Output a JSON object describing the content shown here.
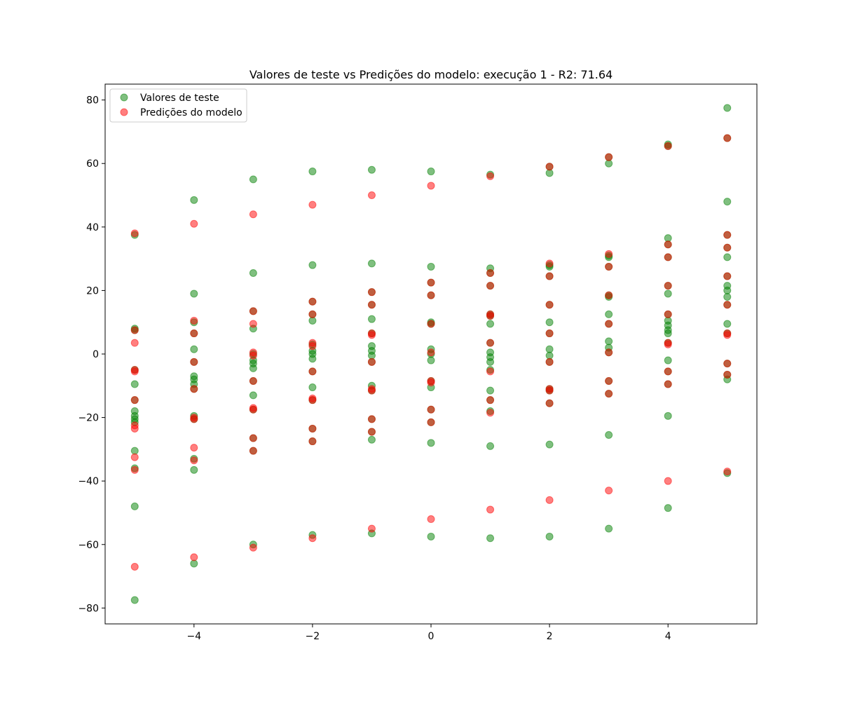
{
  "chart_data": {
    "type": "scatter",
    "title": "Valores de teste vs Predições do modelo: execução 1 - R2: 71.64",
    "xlabel": "",
    "ylabel": "",
    "xlim": [
      -5.5,
      5.5
    ],
    "ylim": [
      -85,
      85
    ],
    "xticks": [
      -4,
      -2,
      0,
      2,
      4
    ],
    "xtick_labels": [
      "−4",
      "−2",
      "0",
      "2",
      "4"
    ],
    "yticks": [
      -80,
      -60,
      -40,
      -20,
      0,
      20,
      40,
      60,
      80
    ],
    "ytick_labels": [
      "−80",
      "−60",
      "−40",
      "−20",
      "0",
      "20",
      "40",
      "60",
      "80"
    ],
    "grid": false,
    "legend_position": "top-left",
    "series": [
      {
        "name": "Valores de teste",
        "color": "#008000",
        "points": [
          [
            -5,
            37.5
          ],
          [
            -5,
            8
          ],
          [
            -5,
            7.5
          ],
          [
            -5,
            -5
          ],
          [
            -5,
            -9.5
          ],
          [
            -5,
            -14.5
          ],
          [
            -5,
            -18
          ],
          [
            -5,
            -19.5
          ],
          [
            -5,
            -20.5
          ],
          [
            -5,
            -21.5
          ],
          [
            -5,
            -30.5
          ],
          [
            -5,
            -36
          ],
          [
            -5,
            -48
          ],
          [
            -5,
            -77.5
          ],
          [
            -4,
            48.5
          ],
          [
            -4,
            19
          ],
          [
            -4,
            10
          ],
          [
            -4,
            6.5
          ],
          [
            -4,
            1.5
          ],
          [
            -4,
            -2.5
          ],
          [
            -4,
            -7
          ],
          [
            -4,
            -8
          ],
          [
            -4,
            -9.5
          ],
          [
            -4,
            -11
          ],
          [
            -4,
            -19.5
          ],
          [
            -4,
            -20.5
          ],
          [
            -4,
            -33
          ],
          [
            -4,
            -36.5
          ],
          [
            -4,
            -66
          ],
          [
            -3,
            55
          ],
          [
            -3,
            25.5
          ],
          [
            -3,
            13.5
          ],
          [
            -3,
            8
          ],
          [
            -3,
            0
          ],
          [
            -3,
            -2
          ],
          [
            -3,
            -3
          ],
          [
            -3,
            -4.5
          ],
          [
            -3,
            -8.5
          ],
          [
            -3,
            -13
          ],
          [
            -3,
            -17.5
          ],
          [
            -3,
            -26.5
          ],
          [
            -3,
            -30.5
          ],
          [
            -3,
            -60
          ],
          [
            -2,
            57.5
          ],
          [
            -2,
            28
          ],
          [
            -2,
            16.5
          ],
          [
            -2,
            12.5
          ],
          [
            -2,
            10.5
          ],
          [
            -2,
            3
          ],
          [
            -2,
            1
          ],
          [
            -2,
            0
          ],
          [
            -2,
            -1.5
          ],
          [
            -2,
            -5.5
          ],
          [
            -2,
            -10.5
          ],
          [
            -2,
            -14.5
          ],
          [
            -2,
            -23.5
          ],
          [
            -2,
            -27.5
          ],
          [
            -2,
            -57
          ],
          [
            -1,
            58
          ],
          [
            -1,
            28.5
          ],
          [
            -1,
            19.5
          ],
          [
            -1,
            15.5
          ],
          [
            -1,
            11
          ],
          [
            -1,
            6.5
          ],
          [
            -1,
            2.5
          ],
          [
            -1,
            1
          ],
          [
            -1,
            -0.5
          ],
          [
            -1,
            -2.5
          ],
          [
            -1,
            -10
          ],
          [
            -1,
            -11.5
          ],
          [
            -1,
            -20.5
          ],
          [
            -1,
            -24.5
          ],
          [
            -1,
            -27
          ],
          [
            -1,
            -56.5
          ],
          [
            0,
            57.5
          ],
          [
            0,
            27.5
          ],
          [
            0,
            22.5
          ],
          [
            0,
            18.5
          ],
          [
            0,
            10
          ],
          [
            0,
            9.5
          ],
          [
            0,
            1.5
          ],
          [
            0,
            0
          ],
          [
            0,
            -2
          ],
          [
            0,
            -8.5
          ],
          [
            0,
            -10.5
          ],
          [
            0,
            -17.5
          ],
          [
            0,
            -21.5
          ],
          [
            0,
            -28
          ],
          [
            0,
            -57.5
          ],
          [
            1,
            56.5
          ],
          [
            1,
            27
          ],
          [
            1,
            25.5
          ],
          [
            1,
            21.5
          ],
          [
            1,
            12.5
          ],
          [
            1,
            12
          ],
          [
            1,
            9.5
          ],
          [
            1,
            3.5
          ],
          [
            1,
            0.5
          ],
          [
            1,
            -1
          ],
          [
            1,
            -2.5
          ],
          [
            1,
            -5
          ],
          [
            1,
            -11.5
          ],
          [
            1,
            -14.5
          ],
          [
            1,
            -18
          ],
          [
            1,
            -29
          ],
          [
            1,
            -58
          ],
          [
            2,
            59
          ],
          [
            2,
            57
          ],
          [
            2,
            28
          ],
          [
            2,
            27.5
          ],
          [
            2,
            24.5
          ],
          [
            2,
            15.5
          ],
          [
            2,
            10
          ],
          [
            2,
            6.5
          ],
          [
            2,
            1.5
          ],
          [
            2,
            -0.5
          ],
          [
            2,
            -2.5
          ],
          [
            2,
            -11
          ],
          [
            2,
            -11.5
          ],
          [
            2,
            -15.5
          ],
          [
            2,
            -28.5
          ],
          [
            2,
            -57.5
          ],
          [
            3,
            62
          ],
          [
            3,
            60
          ],
          [
            3,
            31
          ],
          [
            3,
            30.5
          ],
          [
            3,
            27.5
          ],
          [
            3,
            18.5
          ],
          [
            3,
            18
          ],
          [
            3,
            12.5
          ],
          [
            3,
            9.5
          ],
          [
            3,
            4
          ],
          [
            3,
            2
          ],
          [
            3,
            0.5
          ],
          [
            3,
            -8.5
          ],
          [
            3,
            -12.5
          ],
          [
            3,
            -25.5
          ],
          [
            3,
            -55
          ],
          [
            4,
            66
          ],
          [
            4,
            65.5
          ],
          [
            4,
            36.5
          ],
          [
            4,
            34.5
          ],
          [
            4,
            30.5
          ],
          [
            4,
            21.5
          ],
          [
            4,
            19
          ],
          [
            4,
            12.5
          ],
          [
            4,
            10.5
          ],
          [
            4,
            9
          ],
          [
            4,
            7.5
          ],
          [
            4,
            6.5
          ],
          [
            4,
            3.5
          ],
          [
            4,
            -2
          ],
          [
            4,
            -5.5
          ],
          [
            4,
            -9.5
          ],
          [
            4,
            -19.5
          ],
          [
            4,
            -48.5
          ],
          [
            5,
            77.5
          ],
          [
            5,
            68
          ],
          [
            5,
            48
          ],
          [
            5,
            37.5
          ],
          [
            5,
            33.5
          ],
          [
            5,
            30.5
          ],
          [
            5,
            24.5
          ],
          [
            5,
            21.5
          ],
          [
            5,
            20
          ],
          [
            5,
            18
          ],
          [
            5,
            15.5
          ],
          [
            5,
            9.5
          ],
          [
            5,
            6.5
          ],
          [
            5,
            -3
          ],
          [
            5,
            -6.5
          ],
          [
            5,
            -8
          ],
          [
            5,
            -37.5
          ]
        ]
      },
      {
        "name": "Predições do modelo",
        "color": "#ff0000",
        "points": [
          [
            -5,
            38
          ],
          [
            -5,
            7.5
          ],
          [
            -5,
            3.5
          ],
          [
            -5,
            -5
          ],
          [
            -5,
            -5.5
          ],
          [
            -5,
            -14.5
          ],
          [
            -5,
            -22.5
          ],
          [
            -5,
            -23.5
          ],
          [
            -5,
            -32.5
          ],
          [
            -5,
            -36.5
          ],
          [
            -5,
            -67
          ],
          [
            -4,
            41
          ],
          [
            -4,
            10.5
          ],
          [
            -4,
            6.5
          ],
          [
            -4,
            -2.5
          ],
          [
            -4,
            -11
          ],
          [
            -4,
            -20
          ],
          [
            -4,
            -20.5
          ],
          [
            -4,
            -29.5
          ],
          [
            -4,
            -33.5
          ],
          [
            -4,
            -64
          ],
          [
            -3,
            44
          ],
          [
            -3,
            13.5
          ],
          [
            -3,
            9.5
          ],
          [
            -3,
            0.5
          ],
          [
            -3,
            -0.5
          ],
          [
            -3,
            -8.5
          ],
          [
            -3,
            -17
          ],
          [
            -3,
            -17.5
          ],
          [
            -3,
            -26.5
          ],
          [
            -3,
            -30.5
          ],
          [
            -3,
            -61
          ],
          [
            -2,
            47
          ],
          [
            -2,
            16.5
          ],
          [
            -2,
            12.5
          ],
          [
            -2,
            3.5
          ],
          [
            -2,
            2.5
          ],
          [
            -2,
            -5.5
          ],
          [
            -2,
            -14
          ],
          [
            -2,
            -14.5
          ],
          [
            -2,
            -23.5
          ],
          [
            -2,
            -27.5
          ],
          [
            -2,
            -58
          ],
          [
            -1,
            50
          ],
          [
            -1,
            19.5
          ],
          [
            -1,
            15.5
          ],
          [
            -1,
            6.5
          ],
          [
            -1,
            6
          ],
          [
            -1,
            -2.5
          ],
          [
            -1,
            -11
          ],
          [
            -1,
            -11.5
          ],
          [
            -1,
            -20.5
          ],
          [
            -1,
            -24.5
          ],
          [
            -1,
            -55
          ],
          [
            0,
            53
          ],
          [
            0,
            22.5
          ],
          [
            0,
            18.5
          ],
          [
            0,
            9.5
          ],
          [
            0,
            0.5
          ],
          [
            0,
            -8.5
          ],
          [
            0,
            -9
          ],
          [
            0,
            -17.5
          ],
          [
            0,
            -21.5
          ],
          [
            0,
            -52
          ],
          [
            1,
            56
          ],
          [
            1,
            25.5
          ],
          [
            1,
            21.5
          ],
          [
            1,
            12.5
          ],
          [
            1,
            12
          ],
          [
            1,
            3.5
          ],
          [
            1,
            -5.5
          ],
          [
            1,
            -14.5
          ],
          [
            1,
            -18.5
          ],
          [
            1,
            -49
          ],
          [
            2,
            59
          ],
          [
            2,
            28.5
          ],
          [
            2,
            24.5
          ],
          [
            2,
            15.5
          ],
          [
            2,
            6.5
          ],
          [
            2,
            -2.5
          ],
          [
            2,
            -11
          ],
          [
            2,
            -11.5
          ],
          [
            2,
            -15.5
          ],
          [
            2,
            -46
          ],
          [
            3,
            62
          ],
          [
            3,
            31.5
          ],
          [
            3,
            27.5
          ],
          [
            3,
            18.5
          ],
          [
            3,
            9.5
          ],
          [
            3,
            0.5
          ],
          [
            3,
            -8.5
          ],
          [
            3,
            -12.5
          ],
          [
            3,
            -43
          ],
          [
            4,
            65.5
          ],
          [
            4,
            34.5
          ],
          [
            4,
            30.5
          ],
          [
            4,
            21.5
          ],
          [
            4,
            12.5
          ],
          [
            4,
            3.5
          ],
          [
            4,
            3
          ],
          [
            4,
            -5.5
          ],
          [
            4,
            -9.5
          ],
          [
            4,
            -40
          ],
          [
            5,
            68
          ],
          [
            5,
            37.5
          ],
          [
            5,
            33.5
          ],
          [
            5,
            24.5
          ],
          [
            5,
            15.5
          ],
          [
            5,
            6.5
          ],
          [
            5,
            6
          ],
          [
            5,
            -3
          ],
          [
            5,
            -6.5
          ],
          [
            5,
            -37
          ]
        ]
      }
    ]
  }
}
